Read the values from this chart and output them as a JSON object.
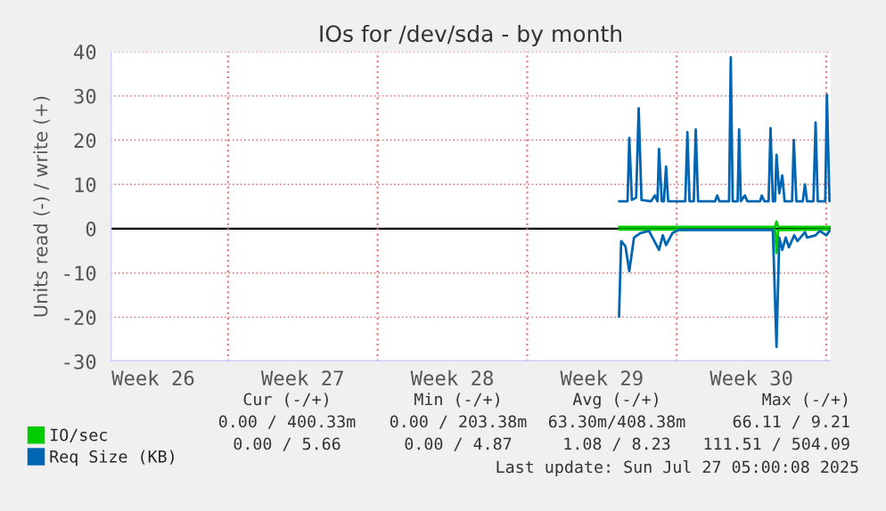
{
  "chart_data": {
    "type": "line",
    "title": "IOs for /dev/sda - by month",
    "ylabel": "Units read (-) / write (+)",
    "xlim": [
      "2025-06-23T12:00",
      "2025-07-27T05:00"
    ],
    "ylim": [
      -30,
      40
    ],
    "yticks": [
      -30,
      -20,
      -10,
      0,
      10,
      20,
      30,
      40
    ],
    "xticks": [
      {
        "value": "2025-06-25T12:00",
        "label": "Week 26"
      },
      {
        "value": "2025-07-02T12:00",
        "label": "Week 27"
      },
      {
        "value": "2025-07-09T12:00",
        "label": "Week 28"
      },
      {
        "value": "2025-07-16T12:00",
        "label": "Week 29"
      },
      {
        "value": "2025-07-23T12:00",
        "label": "Week 30"
      }
    ],
    "grid": "y",
    "legend": "bottom",
    "marker": "none",
    "line_style": "solid",
    "ref_lines": [
      {
        "axis": "y",
        "value": 0,
        "color": "#000000",
        "line_style": "solid"
      },
      {
        "axis": "x",
        "value": "2025-06-29",
        "color": "#e08080",
        "line_style": "dotted"
      },
      {
        "axis": "x",
        "value": "2025-07-06",
        "color": "#e08080",
        "line_style": "dotted"
      },
      {
        "axis": "x",
        "value": "2025-07-13",
        "color": "#e08080",
        "line_style": "dotted"
      },
      {
        "axis": "x",
        "value": "2025-07-20",
        "color": "#e08080",
        "line_style": "dotted"
      },
      {
        "axis": "x",
        "value": "2025-07-27",
        "color": "#e08080",
        "line_style": "dotted"
      }
    ],
    "series": [
      {
        "name": "IO/sec",
        "color": "#00cc00",
        "x": [
          "2025-07-17T07:12",
          "2025-07-24T14:24",
          "2025-07-24T16:05",
          "2025-07-24T18:00",
          "2025-07-27T03:36"
        ],
        "values": [
          0.4,
          0.4,
          1.6,
          0.4,
          0.4
        ]
      },
      {
        "color": "#00cc00",
        "x": [
          "2025-07-17T07:12",
          "2025-07-24T14:24",
          "2025-07-24T16:05",
          "2025-07-24T18:00",
          "2025-07-27T03:36"
        ],
        "values": [
          -0.2,
          -0.2,
          -5.5,
          -0.3,
          -0.2
        ]
      },
      {
        "name": "Req Size (KB)",
        "color": "#0066b3",
        "x": [
          "2025-07-17T07:12",
          "2025-07-17T16:48",
          "2025-07-17T18:43",
          "2025-07-17T21:36",
          "2025-07-18T02:24",
          "2025-07-18T05:17",
          "2025-07-18T08:24",
          "2025-07-18T19:12",
          "2025-07-18T23:31",
          "2025-07-19T02:24",
          "2025-07-19T04:05",
          "2025-07-19T07:12",
          "2025-07-19T09:36",
          "2025-07-19T12:00",
          "2025-07-19T14:24",
          "2025-07-20T09:36",
          "2025-07-20T12:00",
          "2025-07-20T14:24",
          "2025-07-20T19:12",
          "2025-07-20T21:22",
          "2025-07-21T00:00",
          "2025-07-21T19:12",
          "2025-07-21T21:22",
          "2025-07-22T00:00",
          "2025-07-22T10:48",
          "2025-07-22T12:43",
          "2025-07-22T14:53",
          "2025-07-22T20:24",
          "2025-07-22T22:05",
          "2025-07-23T00:00",
          "2025-07-23T04:34",
          "2025-07-23T07:12",
          "2025-07-23T21:36",
          "2025-07-23T23:31",
          "2025-07-24T02:24",
          "2025-07-24T07:12",
          "2025-07-24T09:22",
          "2025-07-24T12:00",
          "2025-07-24T14:24",
          "2025-07-24T16:05",
          "2025-07-24T19:12",
          "2025-07-24T22:34",
          "2025-07-25T01:12",
          "2025-07-25T09:36",
          "2025-07-25T11:31",
          "2025-07-25T14:24",
          "2025-07-25T21:36",
          "2025-07-26T00:00",
          "2025-07-26T02:24",
          "2025-07-26T09:36",
          "2025-07-26T12:00",
          "2025-07-26T14:24",
          "2025-07-26T22:48",
          "2025-07-27T00:43",
          "2025-07-27T03:36"
        ],
        "values": [
          6.2,
          6.2,
          20.5,
          6.5,
          7,
          27.2,
          6.5,
          6.2,
          7.5,
          6.2,
          18,
          6.2,
          6.2,
          14,
          6.2,
          6.2,
          21.8,
          6.2,
          6.2,
          22.4,
          6.2,
          6.2,
          7.5,
          6.2,
          6.2,
          38.7,
          6.2,
          6.2,
          22.4,
          6.2,
          7.5,
          6.2,
          6.2,
          7.5,
          6.2,
          6.2,
          22.7,
          6.2,
          6.2,
          16.7,
          8,
          12,
          6.2,
          6.2,
          20,
          6.2,
          6.2,
          10,
          6.2,
          6.2,
          24,
          6.2,
          6.2,
          30.2,
          6.2
        ]
      },
      {
        "color": "#0066b3",
        "x": [
          "2025-07-17T07:12",
          "2025-07-17T09:36",
          "2025-07-17T14:24",
          "2025-07-17T18:43",
          "2025-07-18T00:00",
          "2025-07-18T07:12",
          "2025-07-18T16:48",
          "2025-07-19T04:05",
          "2025-07-19T08:24",
          "2025-07-19T12:00",
          "2025-07-19T19:12",
          "2025-07-20T02:24",
          "2025-07-24T12:00",
          "2025-07-24T16:05",
          "2025-07-24T19:12",
          "2025-07-24T22:34",
          "2025-07-25T02:24",
          "2025-07-25T06:00",
          "2025-07-25T12:00",
          "2025-07-25T15:36",
          "2025-07-26T00:00",
          "2025-07-26T02:24",
          "2025-07-26T12:00",
          "2025-07-26T16:48",
          "2025-07-27T00:00",
          "2025-07-27T03:36"
        ],
        "values": [
          -19.9,
          -2.8,
          -4,
          -9.6,
          -2,
          -1,
          -0.5,
          -4.8,
          -1.5,
          -3.7,
          -1,
          -0.3,
          -0.3,
          -26.7,
          -2,
          -4.8,
          -2,
          -4.2,
          -1.5,
          -2.8,
          -0.8,
          -2,
          -1.5,
          -0.5,
          -1.5,
          -0.5
        ]
      }
    ],
    "annotations": [
      "Cur (-/+)",
      "Min (-/+)",
      "Avg (-/+)",
      "Max (-/+)",
      "0.00 / 400.33m",
      "0.00 / 203.38m",
      "63.30m/408.38m",
      "66.11 / 9.21",
      "0.00 / 5.66",
      "0.00 / 4.87",
      "1.08 / 8.23",
      "111.51 / 504.09",
      "Last update: Sun Jul 27 05:00:08 2025"
    ]
  }
}
